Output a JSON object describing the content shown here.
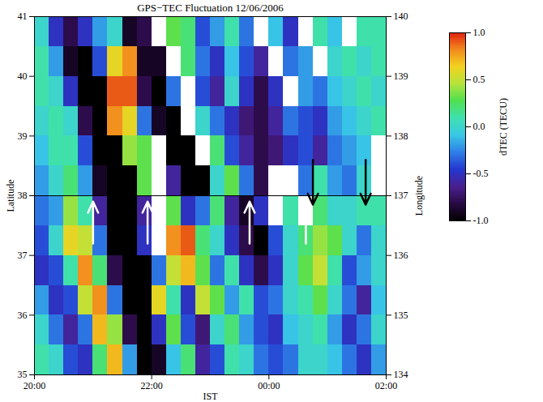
{
  "chart_data": {
    "type": "heatmap",
    "title": "GPS−TEC Fluctuation 12/06/2006",
    "x_label": "IST",
    "y_label": "Latitude",
    "y2_label": "Longitude",
    "colorbar_label": "dTEC (TECU)",
    "xlim": [
      20,
      26
    ],
    "xticks": [
      {
        "value": 20,
        "label": "20:00"
      },
      {
        "value": 22,
        "label": "22:00"
      },
      {
        "value": 24,
        "label": "00:00"
      },
      {
        "value": 26,
        "label": "02:00"
      }
    ],
    "ylim": [
      35,
      41
    ],
    "yticks": [
      35,
      36,
      37,
      38,
      39,
      40,
      41
    ],
    "y2lim": [
      134,
      140
    ],
    "y2ticks": [
      134,
      135,
      136,
      137,
      138,
      139,
      140
    ],
    "zlim": [
      -1,
      1
    ],
    "zticks": [
      {
        "value": -1,
        "label": "-1.0"
      },
      {
        "value": -0.5,
        "label": "-0.5"
      },
      {
        "value": 0,
        "label": "0.0"
      },
      {
        "value": 0.5,
        "label": "0.5"
      },
      {
        "value": 1,
        "label": "1.0"
      }
    ],
    "hline": 38,
    "x_edges": [
      20,
      20.25,
      20.5,
      20.75,
      21,
      21.25,
      21.5,
      21.75,
      22,
      22.25,
      22.5,
      22.75,
      23,
      23.25,
      23.5,
      23.75,
      24,
      24.25,
      24.5,
      24.75,
      25,
      25.25,
      25.5,
      25.75,
      26
    ],
    "y_edges": [
      41,
      40.5,
      40,
      39.5,
      39,
      38.5,
      38,
      37.5,
      37,
      36.5,
      36,
      35.5,
      35
    ],
    "z": [
      [
        0.0,
        -0.5,
        -0.8,
        -0.5,
        -0.2,
        0.0,
        -0.9,
        -0.8,
        null,
        0.3,
        0.2,
        -0.4,
        -0.2,
        0.1,
        -0.3,
        null,
        -0.1,
        -0.5,
        null,
        0.1,
        -0.1,
        null,
        0.1,
        0.1
      ],
      [
        0.1,
        -0.2,
        -0.9,
        -1.0,
        -0.4,
        0.6,
        0.8,
        -0.9,
        -0.9,
        null,
        0.2,
        -0.3,
        -0.5,
        -0.1,
        -0.4,
        -0.6,
        null,
        -0.3,
        -0.2,
        null,
        0.0,
        0.1,
        0.0,
        0.1
      ],
      [
        0.1,
        0.0,
        -0.5,
        -1.0,
        -1.0,
        0.9,
        0.9,
        -0.8,
        -1.0,
        -0.3,
        null,
        -0.4,
        -0.6,
        0.0,
        -0.5,
        -0.8,
        -0.5,
        null,
        -0.2,
        -0.3,
        -0.1,
        0.0,
        0.1,
        0.0
      ],
      [
        0.0,
        0.1,
        0.0,
        -0.8,
        -1.0,
        0.8,
        0.6,
        -0.3,
        -0.9,
        -1.0,
        null,
        0.0,
        -0.3,
        -0.5,
        -0.7,
        -0.8,
        -0.6,
        -0.3,
        -0.4,
        -0.5,
        -0.2,
        -0.1,
        0.0,
        0.1
      ],
      [
        -0.1,
        0.1,
        0.1,
        -0.4,
        -1.0,
        -1.0,
        0.4,
        0.3,
        null,
        -1.0,
        -1.0,
        null,
        0.2,
        -0.4,
        -0.6,
        -0.8,
        -0.7,
        -0.5,
        -0.4,
        -0.6,
        -0.3,
        -0.2,
        -0.1,
        null
      ],
      [
        -0.2,
        0.0,
        0.2,
        -0.2,
        -0.9,
        -1.0,
        -1.0,
        0.3,
        null,
        -0.6,
        -1.0,
        -1.0,
        0.0,
        0.3,
        -0.3,
        -0.8,
        null,
        null,
        -0.3,
        0.1,
        -0.2,
        -0.3,
        0.0,
        null
      ],
      [
        -0.3,
        -0.2,
        0.4,
        0.1,
        -0.6,
        -1.0,
        -1.0,
        -0.6,
        null,
        0.3,
        -0.5,
        -0.3,
        0.2,
        -0.6,
        -0.9,
        -0.5,
        null,
        0.1,
        null,
        0.2,
        0.0,
        0.0,
        0.1,
        0.1
      ],
      [
        -0.4,
        0.0,
        0.6,
        0.5,
        -0.3,
        -1.0,
        -1.0,
        -0.5,
        null,
        0.8,
        0.9,
        0.2,
        0.0,
        -0.5,
        -0.8,
        -1.0,
        -0.4,
        0.0,
        0.2,
        0.4,
        0.3,
        0.0,
        -0.3,
        0.0
      ],
      [
        -0.5,
        -0.4,
        0.1,
        0.8,
        0.2,
        -0.8,
        -1.0,
        -1.0,
        -0.3,
        0.5,
        0.7,
        0.3,
        -0.3,
        0.1,
        -0.5,
        -0.8,
        -0.5,
        0.0,
        0.3,
        0.5,
        0.1,
        -0.4,
        -0.2,
        0.0
      ],
      [
        -0.2,
        -0.5,
        -0.4,
        0.5,
        0.8,
        -0.3,
        -1.0,
        -1.0,
        0.6,
        0.1,
        -0.5,
        0.5,
        0.3,
        -0.2,
        0.1,
        -0.4,
        -0.3,
        0.0,
        0.1,
        0.3,
        0.0,
        -0.3,
        -0.6,
        -0.1
      ],
      [
        0.0,
        -0.3,
        -0.6,
        -0.3,
        0.7,
        0.4,
        -0.8,
        -1.0,
        -0.5,
        0.3,
        -0.4,
        -0.7,
        0.0,
        0.2,
        -0.2,
        -0.4,
        -0.5,
        -0.1,
        0.0,
        0.1,
        -0.2,
        -0.5,
        -0.3,
        0.0
      ],
      [
        0.1,
        0.0,
        -0.4,
        -0.5,
        0.2,
        0.7,
        -0.2,
        -1.0,
        -0.9,
        -0.1,
        0.2,
        -0.6,
        -0.4,
        0.1,
        0.0,
        -0.3,
        -0.4,
        -0.3,
        0.0,
        0.0,
        -0.1,
        -0.3,
        -0.5,
        -0.2
      ]
    ],
    "arrows": [
      {
        "x": 21.0,
        "y1": 37.2,
        "y2": 37.9,
        "direction": "up",
        "color": "white"
      },
      {
        "x": 21.93,
        "y1": 37.2,
        "y2": 37.9,
        "direction": "up",
        "color": "white"
      },
      {
        "x": 23.67,
        "y1": 37.2,
        "y2": 37.9,
        "direction": "up",
        "color": "white"
      },
      {
        "x": 24.63,
        "y1": 37.2,
        "y2": 37.9,
        "direction": "up",
        "color": "white"
      },
      {
        "x": 24.75,
        "y1": 38.6,
        "y2": 37.85,
        "direction": "down",
        "color": "black"
      },
      {
        "x": 25.65,
        "y1": 38.6,
        "y2": 37.85,
        "direction": "down",
        "color": "black"
      }
    ]
  }
}
